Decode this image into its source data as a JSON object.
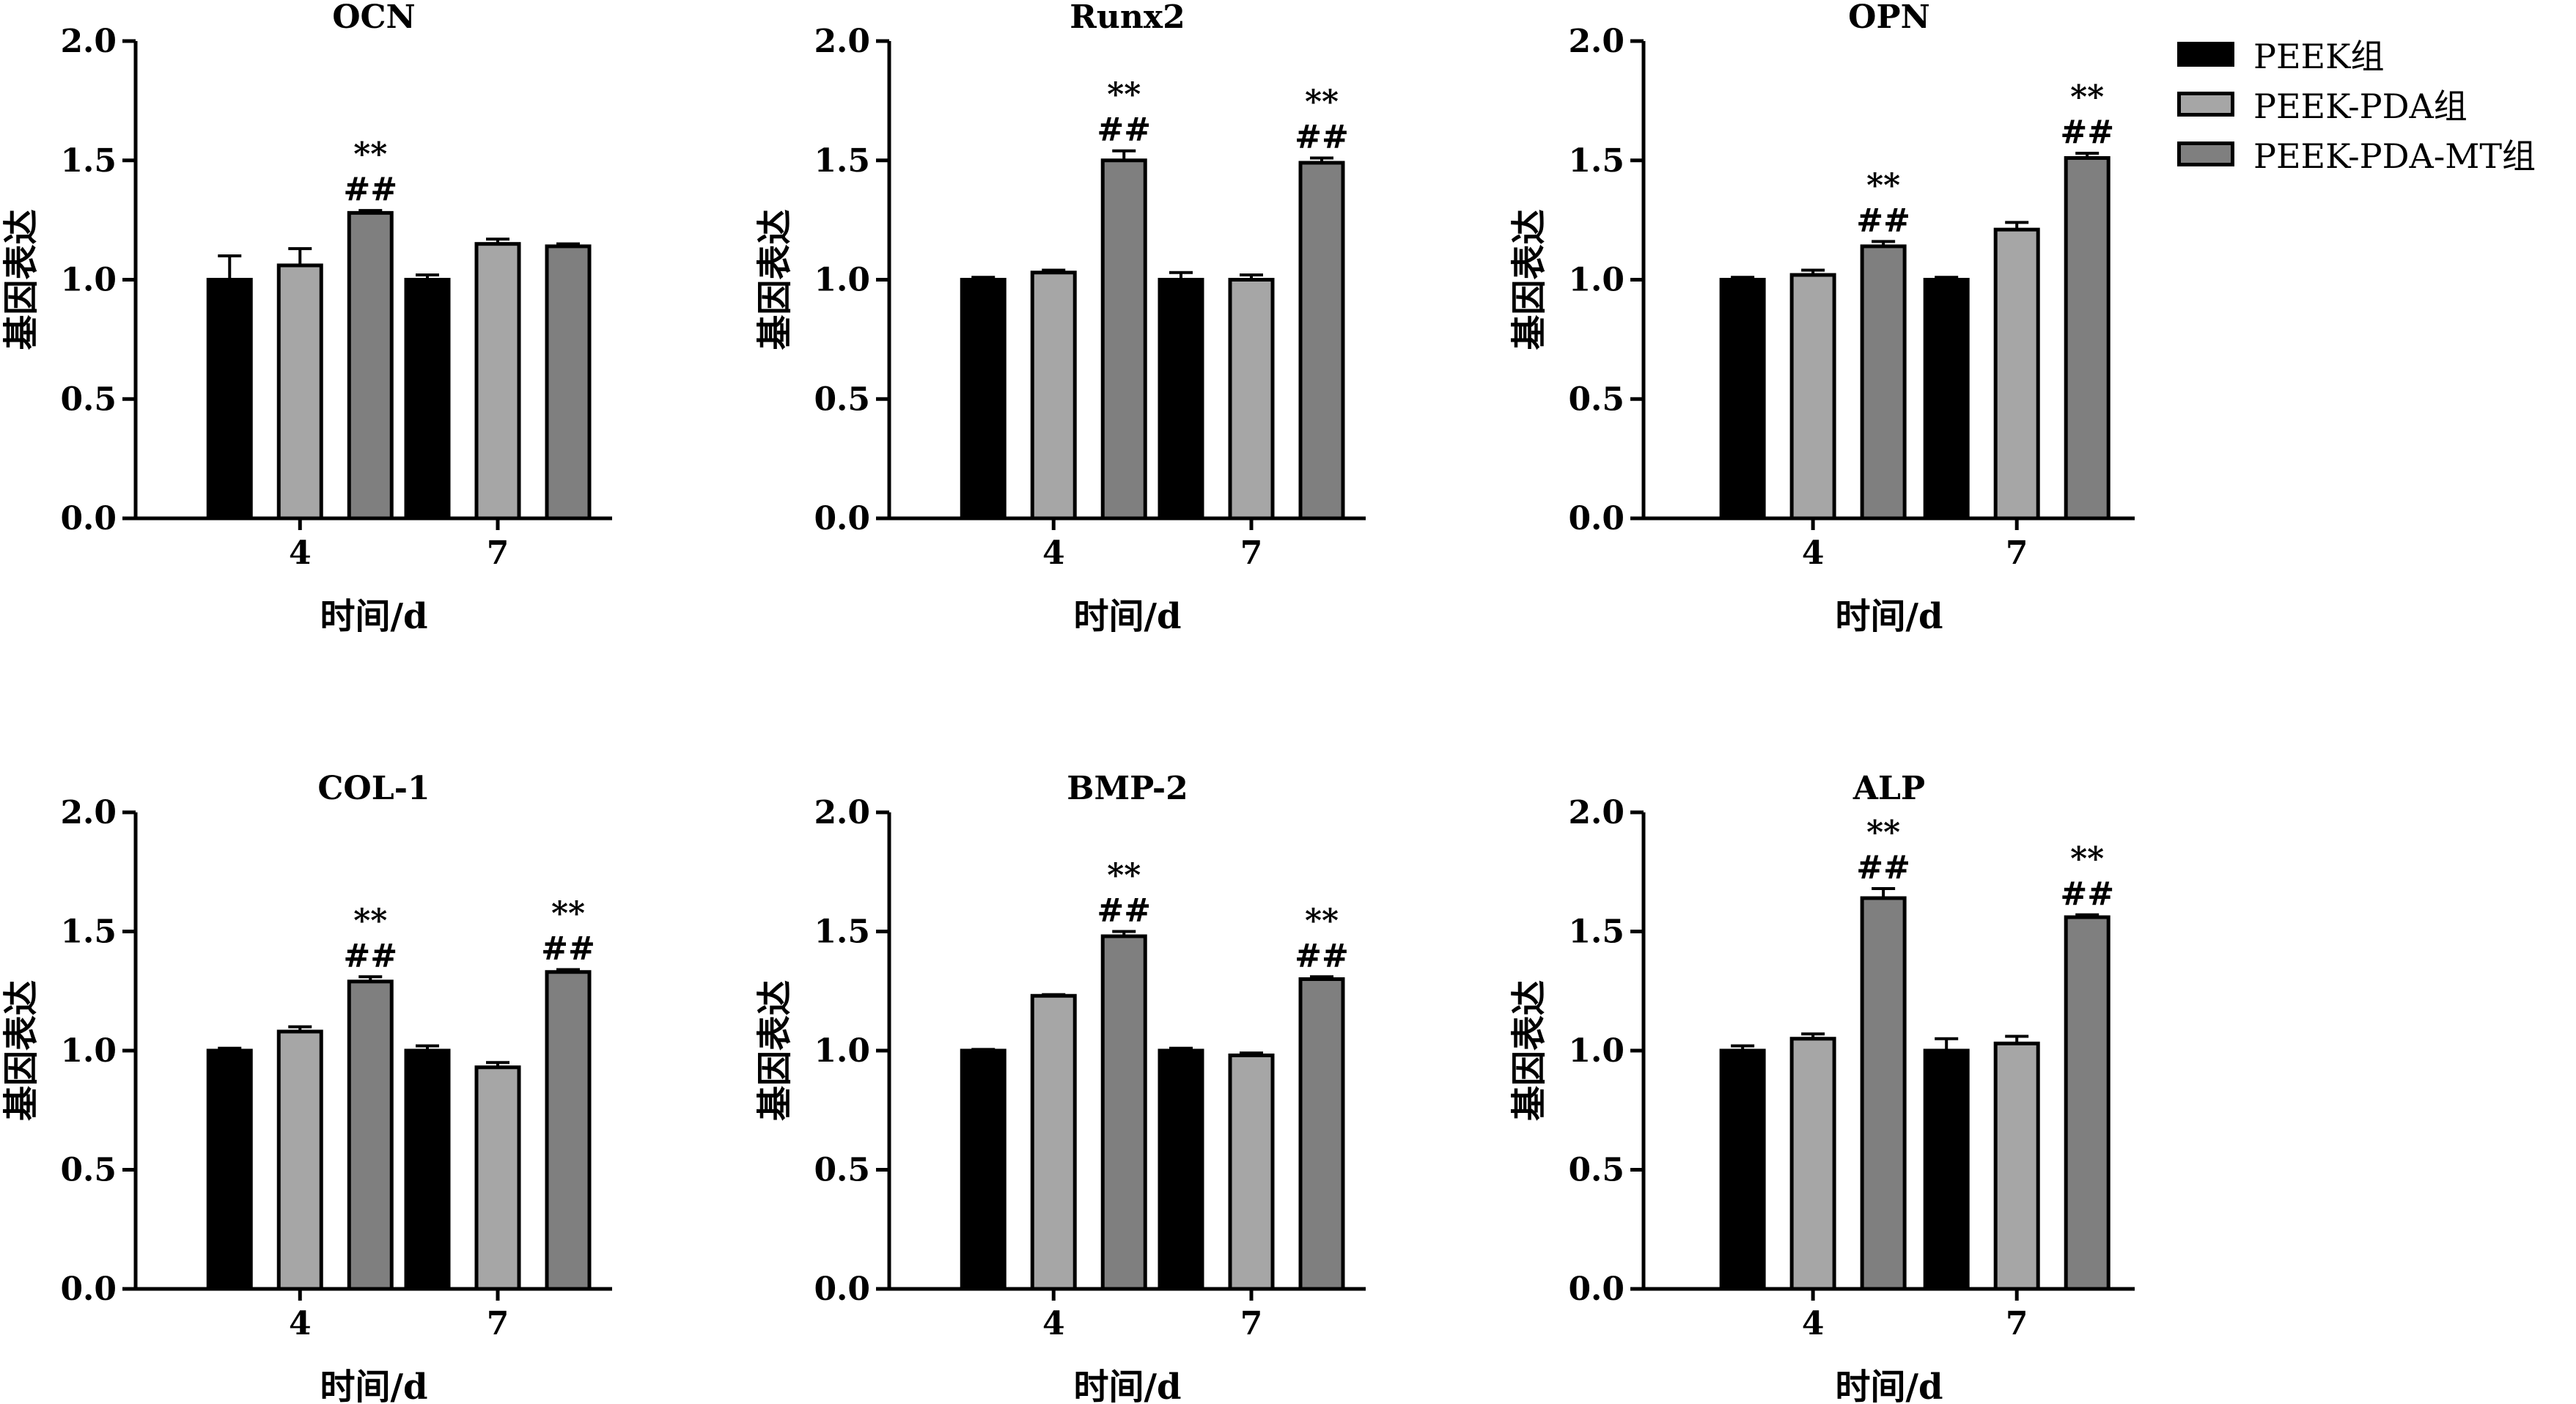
{
  "colors": {
    "PEEK": "#000000",
    "PEEK-PDA": "#a6a6a6",
    "PEEK-PDA-MT": "#7f7f7f"
  },
  "legend": [
    {
      "label": "PEEK组",
      "color": "#000000"
    },
    {
      "label": "PEEK-PDA组",
      "color": "#a6a6a6"
    },
    {
      "label": "PEEK-PDA-MT组",
      "color": "#7f7f7f"
    }
  ],
  "chart_data": [
    {
      "type": "bar",
      "title": "OCN",
      "xlabel": "时间/d",
      "ylabel": "基因表达",
      "ylim": [
        0,
        2.0
      ],
      "yticks": [
        "0.0",
        "0.5",
        "1.0",
        "1.5",
        "2.0"
      ],
      "categories": [
        "4",
        "7"
      ],
      "series": [
        {
          "name": "PEEK组",
          "values": [
            1.0,
            1.0
          ],
          "errors": [
            0.1,
            0.02
          ]
        },
        {
          "name": "PEEK-PDA组",
          "values": [
            1.06,
            1.15
          ],
          "errors": [
            0.07,
            0.02
          ]
        },
        {
          "name": "PEEK-PDA-MT组",
          "values": [
            1.28,
            1.14
          ],
          "errors": [
            0.01,
            0.01
          ]
        }
      ],
      "annotations": [
        {
          "category": 0,
          "series": 2,
          "lines": [
            "**",
            "##"
          ]
        }
      ]
    },
    {
      "type": "bar",
      "title": "Runx2",
      "xlabel": "时间/d",
      "ylabel": "基因表达",
      "ylim": [
        0,
        2.0
      ],
      "yticks": [
        "0.0",
        "0.5",
        "1.0",
        "1.5",
        "2.0"
      ],
      "categories": [
        "4",
        "7"
      ],
      "series": [
        {
          "name": "PEEK组",
          "values": [
            1.0,
            1.0
          ],
          "errors": [
            0.01,
            0.03
          ]
        },
        {
          "name": "PEEK-PDA组",
          "values": [
            1.03,
            1.0
          ],
          "errors": [
            0.01,
            0.02
          ]
        },
        {
          "name": "PEEK-PDA-MT组",
          "values": [
            1.5,
            1.49
          ],
          "errors": [
            0.04,
            0.02
          ]
        }
      ],
      "annotations": [
        {
          "category": 0,
          "series": 2,
          "lines": [
            "**",
            "##"
          ]
        },
        {
          "category": 1,
          "series": 2,
          "lines": [
            "**",
            "##"
          ]
        }
      ]
    },
    {
      "type": "bar",
      "title": "OPN",
      "xlabel": "时间/d",
      "ylabel": "基因表达",
      "ylim": [
        0,
        2.0
      ],
      "yticks": [
        "0.0",
        "0.5",
        "1.0",
        "1.5",
        "2.0"
      ],
      "categories": [
        "4",
        "7"
      ],
      "series": [
        {
          "name": "PEEK组",
          "values": [
            1.0,
            1.0
          ],
          "errors": [
            0.01,
            0.01
          ]
        },
        {
          "name": "PEEK-PDA组",
          "values": [
            1.02,
            1.21
          ],
          "errors": [
            0.02,
            0.03
          ]
        },
        {
          "name": "PEEK-PDA-MT组",
          "values": [
            1.14,
            1.51
          ],
          "errors": [
            0.02,
            0.02
          ]
        }
      ],
      "annotations": [
        {
          "category": 0,
          "series": 2,
          "lines": [
            "**",
            "##"
          ]
        },
        {
          "category": 1,
          "series": 2,
          "lines": [
            "**",
            "##"
          ]
        }
      ]
    },
    {
      "type": "bar",
      "title": "COL-1",
      "xlabel": "时间/d",
      "ylabel": "基因表达",
      "ylim": [
        0,
        2.0
      ],
      "yticks": [
        "0.0",
        "0.5",
        "1.0",
        "1.5",
        "2.0"
      ],
      "categories": [
        "4",
        "7"
      ],
      "series": [
        {
          "name": "PEEK组",
          "values": [
            1.0,
            1.0
          ],
          "errors": [
            0.01,
            0.02
          ]
        },
        {
          "name": "PEEK-PDA组",
          "values": [
            1.08,
            0.93
          ],
          "errors": [
            0.02,
            0.02
          ]
        },
        {
          "name": "PEEK-PDA-MT组",
          "values": [
            1.29,
            1.33
          ],
          "errors": [
            0.02,
            0.01
          ]
        }
      ],
      "annotations": [
        {
          "category": 0,
          "series": 2,
          "lines": [
            "**",
            "##"
          ]
        },
        {
          "category": 1,
          "series": 2,
          "lines": [
            "**",
            "##"
          ]
        }
      ]
    },
    {
      "type": "bar",
      "title": "BMP-2",
      "xlabel": "时间/d",
      "ylabel": "基因表达",
      "ylim": [
        0,
        2.0
      ],
      "yticks": [
        "0.0",
        "0.5",
        "1.0",
        "1.5",
        "2.0"
      ],
      "categories": [
        "4",
        "7"
      ],
      "series": [
        {
          "name": "PEEK组",
          "values": [
            1.0,
            1.0
          ],
          "errors": [
            0.005,
            0.01
          ]
        },
        {
          "name": "PEEK-PDA组",
          "values": [
            1.23,
            0.98
          ],
          "errors": [
            0.005,
            0.01
          ]
        },
        {
          "name": "PEEK-PDA-MT组",
          "values": [
            1.48,
            1.3
          ],
          "errors": [
            0.02,
            0.01
          ]
        }
      ],
      "annotations": [
        {
          "category": 0,
          "series": 2,
          "lines": [
            "**",
            "##"
          ]
        },
        {
          "category": 1,
          "series": 2,
          "lines": [
            "**",
            "##"
          ]
        }
      ]
    },
    {
      "type": "bar",
      "title": "ALP",
      "xlabel": "时间/d",
      "ylabel": "基因表达",
      "ylim": [
        0,
        2.0
      ],
      "yticks": [
        "0.0",
        "0.5",
        "1.0",
        "1.5",
        "2.0"
      ],
      "categories": [
        "4",
        "7"
      ],
      "series": [
        {
          "name": "PEEK组",
          "values": [
            1.0,
            1.0
          ],
          "errors": [
            0.02,
            0.05
          ]
        },
        {
          "name": "PEEK-PDA组",
          "values": [
            1.05,
            1.03
          ],
          "errors": [
            0.02,
            0.03
          ]
        },
        {
          "name": "PEEK-PDA-MT组",
          "values": [
            1.64,
            1.56
          ],
          "errors": [
            0.04,
            0.01
          ]
        }
      ],
      "annotations": [
        {
          "category": 0,
          "series": 2,
          "lines": [
            "**",
            "##"
          ]
        },
        {
          "category": 1,
          "series": 2,
          "lines": [
            "**",
            "##"
          ]
        }
      ]
    }
  ]
}
